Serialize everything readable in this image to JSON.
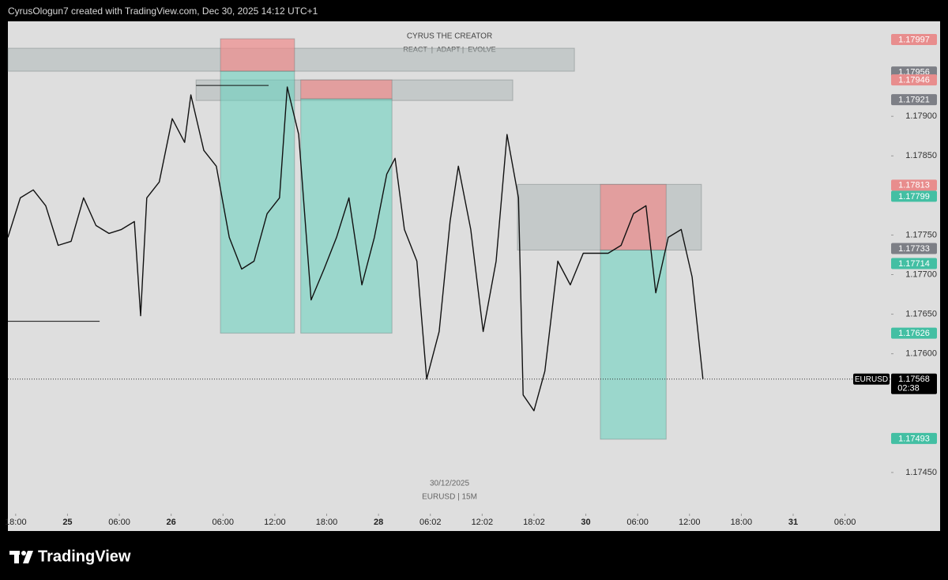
{
  "chart_data": {
    "type": "line",
    "header": "CyrusOlogun7 created with TradingView.com, Dec 30, 2025 14:12 UTC+1",
    "watermark_title": "CYRUS THE CREATOR",
    "watermark_subtitle": "REACT  |  ADAPT |  EVOLVE",
    "date": "30/12/2025",
    "symbol_interval": "EURUSD | 15M",
    "countdown": "02:38",
    "brand": "TradingView",
    "xlim": [
      -0.15,
      16.89
    ],
    "xticks": [
      {
        "value": 0,
        "label": "18:00"
      },
      {
        "value": 1,
        "label": "25"
      },
      {
        "value": 2,
        "label": "06:00"
      },
      {
        "value": 3,
        "label": "26"
      },
      {
        "value": 4,
        "label": "06:00"
      },
      {
        "value": 5,
        "label": "12:00"
      },
      {
        "value": 6,
        "label": "18:00"
      },
      {
        "value": 7,
        "label": "28"
      },
      {
        "value": 8,
        "label": "06:02"
      },
      {
        "value": 9,
        "label": "12:02"
      },
      {
        "value": 10,
        "label": "18:02"
      },
      {
        "value": 11,
        "label": "30"
      },
      {
        "value": 12,
        "label": "06:00"
      },
      {
        "value": 13,
        "label": "12:00"
      },
      {
        "value": 14,
        "label": "18:00"
      },
      {
        "value": 15,
        "label": "31"
      },
      {
        "value": 16,
        "label": "06:00"
      }
    ],
    "ylim": [
      1.17398,
      1.1802
    ],
    "yticks": [
      {
        "value": 1.179,
        "label": "1.17900"
      },
      {
        "value": 1.1785,
        "label": "1.17850"
      },
      {
        "value": 1.1775,
        "label": "1.17750"
      },
      {
        "value": 1.177,
        "label": "1.17700"
      },
      {
        "value": 1.1765,
        "label": "1.17650"
      },
      {
        "value": 1.176,
        "label": "1.17600"
      },
      {
        "value": 1.1745,
        "label": "1.17450"
      }
    ],
    "x": [
      -0.15,
      0.09,
      0.34,
      0.58,
      0.82,
      1.07,
      1.31,
      1.55,
      1.8,
      2.04,
      2.29,
      2.41,
      2.53,
      2.77,
      3.02,
      3.26,
      3.38,
      3.63,
      3.87,
      4.12,
      4.36,
      4.6,
      4.85,
      5.09,
      5.24,
      5.46,
      5.7,
      5.95,
      6.19,
      6.43,
      6.68,
      6.92,
      7.16,
      7.32,
      7.5,
      7.74,
      7.93,
      8.17,
      8.38,
      8.54,
      8.78,
      9.02,
      9.27,
      9.48,
      9.7,
      9.79,
      10.0,
      10.21,
      10.46,
      10.7,
      10.95,
      11.19,
      11.43,
      11.68,
      11.92,
      12.16,
      12.35,
      12.59,
      12.84,
      13.05,
      13.26
    ],
    "series": [
      {
        "name": "EURUSD",
        "color": "#111111",
        "values": [
          1.17747,
          1.17797,
          1.17807,
          1.17787,
          1.17737,
          1.17742,
          1.17797,
          1.17762,
          1.17752,
          1.17757,
          1.17767,
          1.17648,
          1.17797,
          1.17817,
          1.17897,
          1.17867,
          1.17927,
          1.17857,
          1.17837,
          1.17747,
          1.17707,
          1.17717,
          1.17777,
          1.17797,
          1.17937,
          1.17877,
          1.17668,
          1.17707,
          1.17747,
          1.17797,
          1.17687,
          1.17747,
          1.17827,
          1.17847,
          1.17757,
          1.17717,
          1.17568,
          1.17628,
          1.17767,
          1.17837,
          1.17757,
          1.17628,
          1.17717,
          1.17877,
          1.17797,
          1.17548,
          1.17528,
          1.17578,
          1.17717,
          1.17687,
          1.17727,
          1.17727,
          1.17727,
          1.17737,
          1.17777,
          1.17787,
          1.17677,
          1.17747,
          1.17757,
          1.17697,
          1.17568
        ]
      }
    ],
    "zones": [
      {
        "x0": -0.15,
        "x1": 10.78,
        "top": 1.17986,
        "bottom": 1.17957,
        "color": "rgba(165,175,175,0.45)"
      },
      {
        "x0": 3.48,
        "x1": 9.59,
        "top": 1.17946,
        "bottom": 1.1792,
        "color": "rgba(165,175,175,0.45)"
      },
      {
        "x0": 3.95,
        "x1": 5.38,
        "top": 1.17998,
        "bottom": 1.17957,
        "color": "rgba(240,140,140,0.7)"
      },
      {
        "x0": 3.95,
        "x1": 5.38,
        "top": 1.17957,
        "bottom": 1.17626,
        "color": "rgba(100,210,190,0.55)"
      },
      {
        "x0": 5.5,
        "x1": 7.26,
        "top": 1.17946,
        "bottom": 1.17922,
        "color": "rgba(240,140,140,0.7)"
      },
      {
        "x0": 5.5,
        "x1": 7.26,
        "top": 1.17922,
        "bottom": 1.17626,
        "color": "rgba(100,210,190,0.55)"
      },
      {
        "x0": 9.68,
        "x1": 13.23,
        "top": 1.17814,
        "bottom": 1.17731,
        "color": "rgba(165,175,175,0.45)"
      },
      {
        "x0": 11.28,
        "x1": 12.55,
        "top": 1.17814,
        "bottom": 1.17731,
        "color": "rgba(240,140,140,0.7)"
      },
      {
        "x0": 11.28,
        "x1": 12.55,
        "top": 1.17731,
        "bottom": 1.17492,
        "color": "rgba(100,210,190,0.55)"
      }
    ],
    "lines": [
      {
        "y": 1.17641,
        "x0": -0.15,
        "x1": 1.62
      },
      {
        "y": 1.17939,
        "x0": 3.48,
        "x1": 4.88
      }
    ],
    "price_labels": [
      {
        "value": 1.17997,
        "color": "#e88d8d"
      },
      {
        "value": 1.17956,
        "color": "#7d7f86"
      },
      {
        "value": 1.17946,
        "color": "#e88d8d"
      },
      {
        "value": 1.17921,
        "color": "#7d7f86"
      },
      {
        "value": 1.17813,
        "color": "#e88d8d"
      },
      {
        "value": 1.17799,
        "color": "#43bfa3"
      },
      {
        "value": 1.17733,
        "color": "#7d7f86"
      },
      {
        "value": 1.17714,
        "color": "#43bfa3"
      },
      {
        "value": 1.17626,
        "color": "#43bfa3"
      },
      {
        "value": 1.17493,
        "color": "#43bfa3"
      }
    ]
  }
}
